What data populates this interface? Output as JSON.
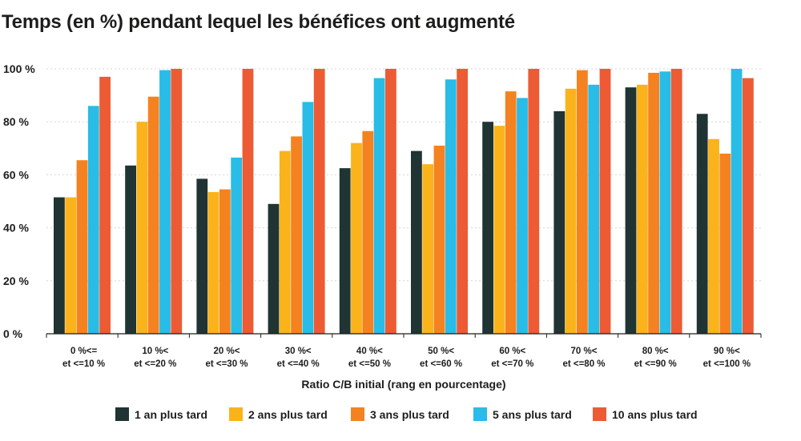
{
  "chart_data": {
    "type": "bar",
    "title": "Temps (en %) pendant lequel les bénéfices ont augmenté",
    "xlabel": "Ratio C/B initial (rang en pourcentage)",
    "ylabel": "",
    "ylim": [
      0,
      100
    ],
    "yticks": [
      0,
      20,
      40,
      60,
      80,
      100
    ],
    "ytick_labels": [
      "0 %",
      "20 %",
      "40 %",
      "60 %",
      "80 %",
      "100 %"
    ],
    "categories": [
      [
        "0 %<=",
        "et <=10 %"
      ],
      [
        "10 %<",
        "et <=20 %"
      ],
      [
        "20 %<",
        "et <=30 %"
      ],
      [
        "30 %<",
        "et <=40 %"
      ],
      [
        "40 %<",
        "et <=50 %"
      ],
      [
        "50 %<",
        "et <=60 %"
      ],
      [
        "60 %<",
        "et <=70 %"
      ],
      [
        "70 %<",
        "et <=80 %"
      ],
      [
        "80 %<",
        "et <=90 %"
      ],
      [
        "90 %<",
        "et <=100 %"
      ]
    ],
    "series": [
      {
        "name": "1 an plus tard",
        "color": "#1f3433",
        "values": [
          51.5,
          63.5,
          58.5,
          49,
          62.5,
          69,
          80,
          84,
          93,
          83
        ]
      },
      {
        "name": "2 ans plus tard",
        "color": "#fbb31b",
        "values": [
          51.5,
          80,
          53.5,
          69,
          72,
          64,
          78.5,
          92.5,
          94,
          73.5
        ]
      },
      {
        "name": "3 ans plus tard",
        "color": "#f58220",
        "values": [
          65.5,
          89.5,
          54.5,
          74.5,
          76.5,
          71,
          91.5,
          99.5,
          98.5,
          68
        ]
      },
      {
        "name": "5 ans plus tard",
        "color": "#28bce7",
        "values": [
          86,
          99.5,
          66.5,
          87.5,
          96.5,
          96,
          89,
          94,
          99,
          100
        ]
      },
      {
        "name": "10 ans plus tard",
        "color": "#ec5b33",
        "values": [
          97,
          100,
          100,
          100,
          100,
          100,
          100,
          100,
          100,
          96.5
        ]
      }
    ],
    "grid": true,
    "legend": "bottom"
  }
}
